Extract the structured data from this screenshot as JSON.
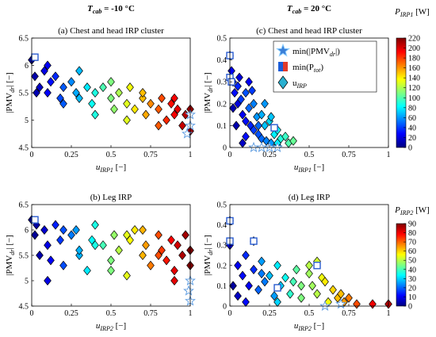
{
  "chart_data": [
    {
      "type": "scatter",
      "header": [
        "T",
        "cab",
        " = -10 °C"
      ],
      "title": "(a) Chest and head IRP cluster",
      "xlabel": [
        "u",
        "IRP1",
        " [−]"
      ],
      "ylabel": [
        "|PMV",
        "dr",
        "| [−]"
      ],
      "xlim": [
        0,
        1
      ],
      "xticks": [
        0,
        0.25,
        0.5,
        0.75,
        1
      ],
      "ylim": [
        4.5,
        6.5
      ],
      "yticks": [
        4.5,
        5,
        5.5,
        6,
        6.5
      ],
      "clim": [
        0,
        220
      ],
      "x": [
        0,
        0.02,
        0.05,
        0.08,
        0.1,
        0.12,
        0.15,
        0.18,
        0.2,
        0.25,
        0.28,
        0.3,
        0.35,
        0.38,
        0.4,
        0.45,
        0.5,
        0.52,
        0.55,
        0.6,
        0.62,
        0.65,
        0.7,
        0.72,
        0.75,
        0.8,
        0.82,
        0.85,
        0.88,
        0.9,
        0.92,
        0.95,
        0.97,
        1,
        1,
        0.03,
        0.1,
        0.3,
        0.5,
        0.7,
        0.9,
        0.6,
        0.2,
        0.4,
        0.8
      ],
      "y": [
        6.1,
        5.8,
        5.6,
        5.9,
        5.5,
        5.7,
        5.8,
        5.4,
        5.6,
        5.7,
        5.5,
        5.4,
        5.6,
        5.3,
        5.5,
        5.6,
        5.4,
        5.2,
        5.5,
        5.3,
        5.6,
        5.2,
        5.4,
        5.1,
        5.3,
        5.2,
        5.4,
        5.0,
        5.3,
        5.1,
        5.2,
        4.9,
        5.1,
        5.2,
        4.8,
        5.5,
        6.0,
        5.9,
        5.7,
        5.5,
        5.4,
        5.0,
        5.3,
        5.1,
        4.9
      ],
      "c": [
        5,
        9,
        15,
        22,
        26,
        30,
        36,
        43,
        47,
        57,
        64,
        68,
        78,
        85,
        89,
        99,
        110,
        114,
        120,
        131,
        135,
        142,
        152,
        156,
        163,
        173,
        177,
        184,
        190,
        194,
        198,
        205,
        209,
        215,
        215,
        11,
        26,
        68,
        110,
        152,
        194,
        131,
        47,
        89,
        173
      ],
      "stars": {
        "x": [
          1,
          1,
          0.98
        ],
        "y": [
          5.1,
          4.9,
          4.75
        ]
      },
      "squares": {
        "x": [
          0.02
        ],
        "y": [
          6.15
        ]
      }
    },
    {
      "type": "scatter",
      "title": "(b) Leg IRP",
      "xlabel": [
        "u",
        "IRP2",
        " [−]"
      ],
      "ylabel": [
        "|PMV",
        "dr",
        "| [−]"
      ],
      "xlim": [
        0,
        1
      ],
      "xticks": [
        0,
        0.25,
        0.5,
        0.75,
        1
      ],
      "ylim": [
        4.5,
        6.5
      ],
      "yticks": [
        4.5,
        5,
        5.5,
        6,
        6.5
      ],
      "clim": [
        0,
        90
      ],
      "x": [
        0,
        0.02,
        0.05,
        0.08,
        0.1,
        0.12,
        0.15,
        0.18,
        0.2,
        0.25,
        0.28,
        0.3,
        0.35,
        0.38,
        0.4,
        0.45,
        0.5,
        0.52,
        0.55,
        0.6,
        0.62,
        0.65,
        0.7,
        0.72,
        0.75,
        0.8,
        0.82,
        0.85,
        0.88,
        0.9,
        0.92,
        0.95,
        0.97,
        1,
        1,
        0.03,
        0.1,
        0.3,
        0.5,
        0.7,
        0.9,
        0.6,
        0.2,
        0.4,
        0.8
      ],
      "y": [
        6.2,
        5.9,
        5.5,
        6.0,
        5.7,
        5.4,
        6.1,
        5.8,
        5.3,
        5.9,
        6.0,
        5.5,
        5.2,
        5.8,
        6.1,
        5.7,
        5.4,
        5.9,
        5.6,
        5.1,
        5.8,
        6.0,
        5.5,
        5.7,
        5.3,
        5.9,
        5.6,
        5.4,
        5.8,
        5.2,
        5.7,
        5.5,
        5.9,
        5.3,
        5.6,
        6.1,
        5.0,
        5.6,
        5.2,
        6.0,
        5.0,
        5.9,
        6.0,
        5.7,
        5.5
      ],
      "c": [
        0,
        2,
        4,
        7,
        9,
        11,
        14,
        16,
        18,
        22,
        25,
        27,
        32,
        34,
        36,
        40,
        45,
        47,
        50,
        54,
        56,
        58,
        63,
        65,
        68,
        72,
        74,
        77,
        79,
        81,
        83,
        86,
        87,
        90,
        90,
        3,
        9,
        27,
        45,
        63,
        81,
        54,
        18,
        36,
        72
      ],
      "stars": {
        "x": [
          1,
          0.99,
          1
        ],
        "y": [
          5.0,
          4.8,
          4.6
        ]
      },
      "squares": {
        "x": [
          0.02
        ],
        "y": [
          6.2
        ]
      }
    },
    {
      "type": "scatter",
      "header": [
        "T",
        "cab",
        " = 20 °C"
      ],
      "title": "(c) Chest and head IRP cluster",
      "xlabel": [
        "u",
        "IRP1",
        " [−]"
      ],
      "ylabel": [
        "|PMV",
        "dr",
        "| [−]"
      ],
      "xlim": [
        0,
        1
      ],
      "xticks": [
        0,
        0.25,
        0.5,
        0.75,
        1
      ],
      "ylim": [
        0,
        0.5
      ],
      "yticks": [
        0,
        0.1,
        0.2,
        0.3,
        0.4,
        0.5
      ],
      "clim": [
        0,
        220
      ],
      "colorbar": {
        "label": [
          "P",
          "IRP1",
          " [W]"
        ],
        "ticks": [
          0,
          20,
          40,
          60,
          80,
          100,
          120,
          140,
          160,
          180,
          200,
          220
        ]
      },
      "legend": [
        [
          "min(|PMV",
          "dr",
          "|)"
        ],
        [
          "min(P",
          "tot",
          ")"
        ],
        [
          "u",
          "IRP"
        ]
      ],
      "x": [
        0,
        0.01,
        0.02,
        0.03,
        0.05,
        0.05,
        0.07,
        0.08,
        0.1,
        0.1,
        0.12,
        0.13,
        0.15,
        0.15,
        0.17,
        0.18,
        0.2,
        0.2,
        0.22,
        0.23,
        0.25,
        0.26,
        0.28,
        0.3,
        0.3,
        0.32,
        0.35,
        0.37,
        0.4,
        0.02,
        0.06,
        0.1,
        0.14,
        0.18,
        0.22,
        0.26,
        0.3,
        0.04,
        0.08,
        0.12
      ],
      "y": [
        0.42,
        0.35,
        0.3,
        0.25,
        0.28,
        0.2,
        0.22,
        0.15,
        0.25,
        0.12,
        0.18,
        0.1,
        0.2,
        0.08,
        0.14,
        0.06,
        0.15,
        0.04,
        0.1,
        0.03,
        0.12,
        0.02,
        0.06,
        0.08,
        0.01,
        0.04,
        0.05,
        0.02,
        0.03,
        0.18,
        0.32,
        0.05,
        0.26,
        0.1,
        0.2,
        0.14,
        0.02,
        0.1,
        0.02,
        0.3
      ],
      "c": [
        20,
        25,
        15,
        30,
        35,
        20,
        40,
        25,
        45,
        30,
        50,
        35,
        55,
        40,
        60,
        45,
        65,
        50,
        70,
        55,
        75,
        60,
        80,
        85,
        65,
        90,
        95,
        100,
        105,
        10,
        20,
        30,
        40,
        50,
        60,
        70,
        80,
        10,
        15,
        25
      ],
      "stars": {
        "x": [
          0.15,
          0.2,
          0.25,
          0.3
        ],
        "y": [
          0,
          0,
          0,
          0
        ]
      },
      "squares": {
        "x": [
          0,
          0,
          0.01,
          0.28
        ],
        "y": [
          0.42,
          0.32,
          0.3,
          0.09
        ]
      }
    },
    {
      "type": "scatter",
      "title": "(d) Leg IRP",
      "xlabel": [
        "u",
        "IRP2",
        " [−]"
      ],
      "ylabel": [
        "|PMV",
        "dr",
        "| [−]"
      ],
      "xlim": [
        0,
        1
      ],
      "xticks": [
        0,
        0.25,
        0.5,
        0.75,
        1
      ],
      "ylim": [
        0,
        0.5
      ],
      "yticks": [
        0,
        0.1,
        0.2,
        0.3,
        0.4,
        0.5
      ],
      "clim": [
        0,
        90
      ],
      "colorbar": {
        "label": [
          "P",
          "IRP2",
          " [W]"
        ],
        "ticks": [
          0,
          10,
          20,
          30,
          40,
          50,
          60,
          70,
          80,
          90
        ]
      },
      "x": [
        0,
        0,
        0.02,
        0.05,
        0.05,
        0.08,
        0.1,
        0.12,
        0.15,
        0.15,
        0.18,
        0.2,
        0.22,
        0.25,
        0.28,
        0.3,
        0.32,
        0.35,
        0.38,
        0.4,
        0.42,
        0.45,
        0.5,
        0.52,
        0.55,
        0.55,
        0.58,
        0.6,
        0.62,
        0.65,
        0.68,
        0.7,
        0.72,
        0.75,
        0.8,
        0.9,
        1,
        0.1,
        0.2,
        0.3,
        0.45,
        0.5
      ],
      "y": [
        0.42,
        0.3,
        0.1,
        0.2,
        0.05,
        0.15,
        0.25,
        0.1,
        0.32,
        0.18,
        0.08,
        0.22,
        0.12,
        0.15,
        0.05,
        0.2,
        0.1,
        0.14,
        0.06,
        0.12,
        0.18,
        0.04,
        0.2,
        0.1,
        0.22,
        0.06,
        0.14,
        0.12,
        0.02,
        0.08,
        0.04,
        0.06,
        0.02,
        0.04,
        0.01,
        0.01,
        0.01,
        0.02,
        0.16,
        0.02,
        0.1,
        0.16
      ],
      "c": [
        5,
        8,
        3,
        10,
        6,
        12,
        15,
        10,
        18,
        15,
        20,
        25,
        22,
        28,
        25,
        32,
        30,
        35,
        38,
        40,
        42,
        45,
        50,
        48,
        52,
        50,
        55,
        58,
        55,
        60,
        62,
        62,
        65,
        68,
        72,
        80,
        85,
        12,
        22,
        30,
        45,
        48
      ],
      "stars": {
        "x": [
          0.6,
          0.7
        ],
        "y": [
          0,
          0.01
        ]
      },
      "squares": {
        "x": [
          0,
          0,
          0.15,
          0.3,
          0.55
        ],
        "y": [
          0.42,
          0.32,
          0.32,
          0.09,
          0.2
        ]
      }
    }
  ]
}
